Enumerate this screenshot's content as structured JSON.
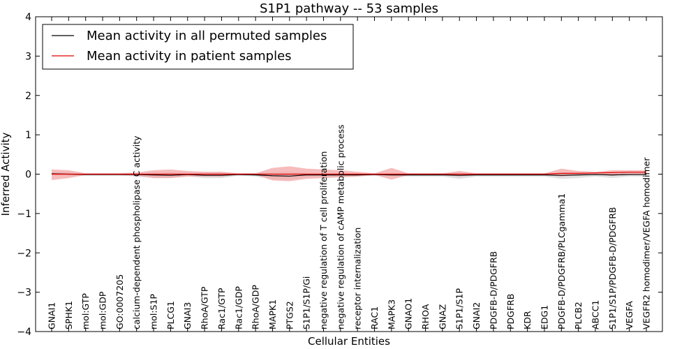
{
  "chart_data": {
    "type": "line",
    "title": "S1P1 pathway -- 53 samples",
    "xlabel": "Cellular Entities",
    "ylabel": "Inferred Activity",
    "ylim": [
      -4,
      4
    ],
    "yticks": [
      -4,
      -3,
      -2,
      -1,
      0,
      1,
      2,
      3,
      4
    ],
    "ytick_labels": [
      "−4",
      "−3",
      "−2",
      "−1",
      "0",
      "1",
      "2",
      "3",
      "4"
    ],
    "categories": [
      "GNAI1",
      "SPHK1",
      "mol:GTP",
      "mol:GDP",
      "GO:0007205",
      "calcium-dependent phospholipase C activity",
      "mol:S1P",
      "PLCG1",
      "GNAI3",
      "RhoA/GTP",
      "Rac1/GTP",
      "Rac1/GDP",
      "RhoA/GDP",
      "MAPK1",
      "PTGS2",
      "S1P1/S1P/Gi",
      "negative regulation of T cell proliferation",
      "negative regulation of cAMP metabolic process",
      "receptor internalization",
      "RAC1",
      "MAPK3",
      "GNAO1",
      "RHOA",
      "GNAZ",
      "S1P1/S1P",
      "GNAI2",
      "PDGFB-D/PDGFRB",
      "PDGFRB",
      "KDR",
      "EDG1",
      "PDGFB-D/PDGFRB/PLCgamma1",
      "PLCB2",
      "ABCC1",
      "S1P1/S1P/PDGFB-D/PDGFRB",
      "VEGFA",
      "VEGFR2 homodimer/VEGFA homodimer"
    ],
    "legend": {
      "placement": "top-left",
      "entries": [
        "Mean activity in all permuted samples",
        "Mean activity in patient samples"
      ]
    },
    "series": [
      {
        "name": "Mean activity in all permuted samples",
        "color": "#000000",
        "band_color": "#c8c8c8",
        "values": [
          0.01,
          0.0,
          -0.01,
          -0.01,
          -0.01,
          -0.01,
          -0.02,
          -0.03,
          -0.01,
          -0.03,
          -0.03,
          -0.01,
          -0.02,
          -0.04,
          -0.05,
          -0.02,
          -0.02,
          -0.02,
          -0.02,
          -0.01,
          -0.02,
          -0.02,
          -0.02,
          -0.02,
          -0.03,
          -0.02,
          -0.02,
          -0.02,
          -0.02,
          -0.02,
          -0.03,
          -0.02,
          -0.01,
          -0.02,
          -0.01,
          -0.01
        ],
        "lower": [
          -0.04,
          -0.05,
          -0.04,
          -0.04,
          -0.04,
          -0.06,
          -0.1,
          -0.1,
          -0.06,
          -0.1,
          -0.1,
          -0.04,
          -0.06,
          -0.12,
          -0.14,
          -0.08,
          -0.06,
          -0.07,
          -0.06,
          -0.04,
          -0.06,
          -0.06,
          -0.06,
          -0.06,
          -0.12,
          -0.06,
          -0.06,
          -0.06,
          -0.06,
          -0.06,
          -0.12,
          -0.1,
          -0.06,
          -0.1,
          -0.06,
          -0.06
        ],
        "upper": [
          0.06,
          0.05,
          0.03,
          0.03,
          0.03,
          0.04,
          0.06,
          0.05,
          0.04,
          0.05,
          0.05,
          0.03,
          0.03,
          0.05,
          0.05,
          0.04,
          0.03,
          0.03,
          0.03,
          0.03,
          0.03,
          0.03,
          0.03,
          0.03,
          0.04,
          0.03,
          0.03,
          0.03,
          0.03,
          0.03,
          0.04,
          0.05,
          0.04,
          0.05,
          0.04,
          0.04
        ]
      },
      {
        "name": "Mean activity in patient samples",
        "color": "#e00000",
        "band_color": "#f4a5a5",
        "values": [
          0.0,
          0.0,
          0.0,
          0.0,
          0.0,
          0.0,
          0.0,
          0.0,
          0.0,
          0.0,
          0.0,
          0.0,
          0.0,
          0.0,
          0.0,
          0.0,
          0.0,
          0.0,
          0.0,
          0.0,
          0.0,
          0.0,
          0.0,
          0.0,
          0.0,
          0.0,
          0.0,
          0.0,
          0.0,
          0.0,
          0.02,
          0.02,
          0.03,
          0.04,
          0.05,
          0.05
        ],
        "lower": [
          -0.15,
          -0.1,
          -0.02,
          -0.02,
          -0.02,
          -0.04,
          -0.1,
          -0.1,
          -0.06,
          -0.06,
          -0.06,
          -0.02,
          -0.02,
          -0.16,
          -0.18,
          -0.12,
          -0.1,
          -0.08,
          -0.06,
          -0.02,
          -0.14,
          -0.02,
          -0.02,
          -0.02,
          -0.06,
          -0.02,
          -0.02,
          -0.02,
          -0.02,
          -0.02,
          -0.06,
          -0.02,
          0.0,
          -0.04,
          0.0,
          0.0
        ],
        "upper": [
          0.12,
          0.1,
          0.02,
          0.02,
          0.02,
          0.04,
          0.1,
          0.12,
          0.08,
          0.06,
          0.06,
          0.02,
          0.02,
          0.16,
          0.2,
          0.14,
          0.12,
          0.1,
          0.06,
          0.02,
          0.16,
          0.02,
          0.02,
          0.02,
          0.08,
          0.02,
          0.02,
          0.02,
          0.02,
          0.02,
          0.14,
          0.08,
          0.06,
          0.1,
          0.1,
          0.1
        ]
      }
    ]
  }
}
